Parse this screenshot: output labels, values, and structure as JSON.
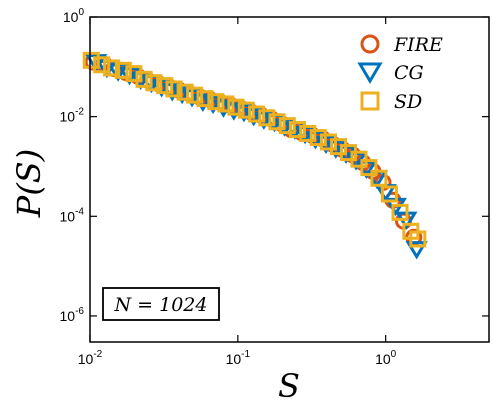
{
  "chart_data": {
    "type": "scatter",
    "title": "",
    "xlabel": "S",
    "ylabel": "P(S)",
    "xscale": "log",
    "yscale": "log",
    "xlim": [
      0.01,
      5
    ],
    "ylim": [
      3e-07,
      1
    ],
    "grid": false,
    "legend_position": "top-right",
    "x_ticks": [
      {
        "value": 0.01,
        "base": "10",
        "exp": "-2"
      },
      {
        "value": 0.1,
        "base": "10",
        "exp": "-1"
      },
      {
        "value": 1,
        "base": "10",
        "exp": "0"
      }
    ],
    "y_ticks": [
      {
        "value": 1e-06,
        "base": "10",
        "exp": "-6"
      },
      {
        "value": 0.0001,
        "base": "10",
        "exp": "-4"
      },
      {
        "value": 0.01,
        "base": "10",
        "exp": "-2"
      },
      {
        "value": 1,
        "base": "10",
        "exp": "0"
      }
    ],
    "annotation": "N = 1024",
    "series": [
      {
        "name": "FIRE",
        "marker": "circle",
        "color": "#D95319",
        "x": [
          0.0105,
          0.0125,
          0.0145,
          0.0175,
          0.021,
          0.0245,
          0.029,
          0.034,
          0.04,
          0.047,
          0.055,
          0.065,
          0.076,
          0.089,
          0.104,
          0.122,
          0.143,
          0.168,
          0.197,
          0.23,
          0.27,
          0.32,
          0.375,
          0.44,
          0.51,
          0.6,
          0.7,
          0.82,
          0.96,
          1.12,
          1.32,
          1.55
        ],
        "y": [
          0.125,
          0.112,
          0.092,
          0.077,
          0.065,
          0.054,
          0.046,
          0.04,
          0.034,
          0.029,
          0.025,
          0.022,
          0.0195,
          0.017,
          0.0148,
          0.0125,
          0.0108,
          0.0091,
          0.0073,
          0.0055,
          0.0048,
          0.0042,
          0.0036,
          0.0028,
          0.0022,
          0.0017,
          0.0012,
          0.0008,
          0.00048,
          0.00021,
          8e-05,
          3.8e-05
        ]
      },
      {
        "name": "CG",
        "marker": "triangle-down",
        "color": "#0072BD",
        "x": [
          0.011,
          0.013,
          0.0155,
          0.0185,
          0.022,
          0.026,
          0.0305,
          0.036,
          0.042,
          0.049,
          0.058,
          0.068,
          0.08,
          0.094,
          0.11,
          0.128,
          0.15,
          0.177,
          0.207,
          0.243,
          0.285,
          0.335,
          0.395,
          0.46,
          0.54,
          0.63,
          0.74,
          0.87,
          1.0,
          1.17,
          1.38,
          1.62
        ],
        "y": [
          0.13,
          0.1,
          0.085,
          0.072,
          0.058,
          0.05,
          0.041,
          0.034,
          0.03,
          0.026,
          0.021,
          0.019,
          0.016,
          0.014,
          0.013,
          0.0108,
          0.0092,
          0.0082,
          0.0067,
          0.0058,
          0.0047,
          0.0037,
          0.003,
          0.0024,
          0.0019,
          0.0014,
          0.00095,
          0.0006,
          0.00032,
          0.00017,
          9e-05,
          2.3e-05
        ]
      },
      {
        "name": "SD",
        "marker": "square",
        "color": "#EDB120",
        "x": [
          0.0102,
          0.012,
          0.014,
          0.0168,
          0.0198,
          0.0232,
          0.027,
          0.032,
          0.037,
          0.044,
          0.051,
          0.06,
          0.071,
          0.083,
          0.097,
          0.114,
          0.134,
          0.157,
          0.184,
          0.216,
          0.253,
          0.297,
          0.35,
          0.41,
          0.48,
          0.56,
          0.66,
          0.77,
          0.9,
          1.06,
          1.25,
          1.48,
          1.65
        ],
        "y": [
          0.135,
          0.11,
          0.095,
          0.085,
          0.073,
          0.056,
          0.048,
          0.042,
          0.036,
          0.031,
          0.027,
          0.023,
          0.02,
          0.018,
          0.0155,
          0.0135,
          0.0113,
          0.0095,
          0.0079,
          0.0066,
          0.0055,
          0.0046,
          0.0038,
          0.0031,
          0.0025,
          0.0019,
          0.0014,
          0.00095,
          0.00058,
          0.00028,
          0.00012,
          5e-05,
          3.5e-05
        ]
      }
    ]
  }
}
